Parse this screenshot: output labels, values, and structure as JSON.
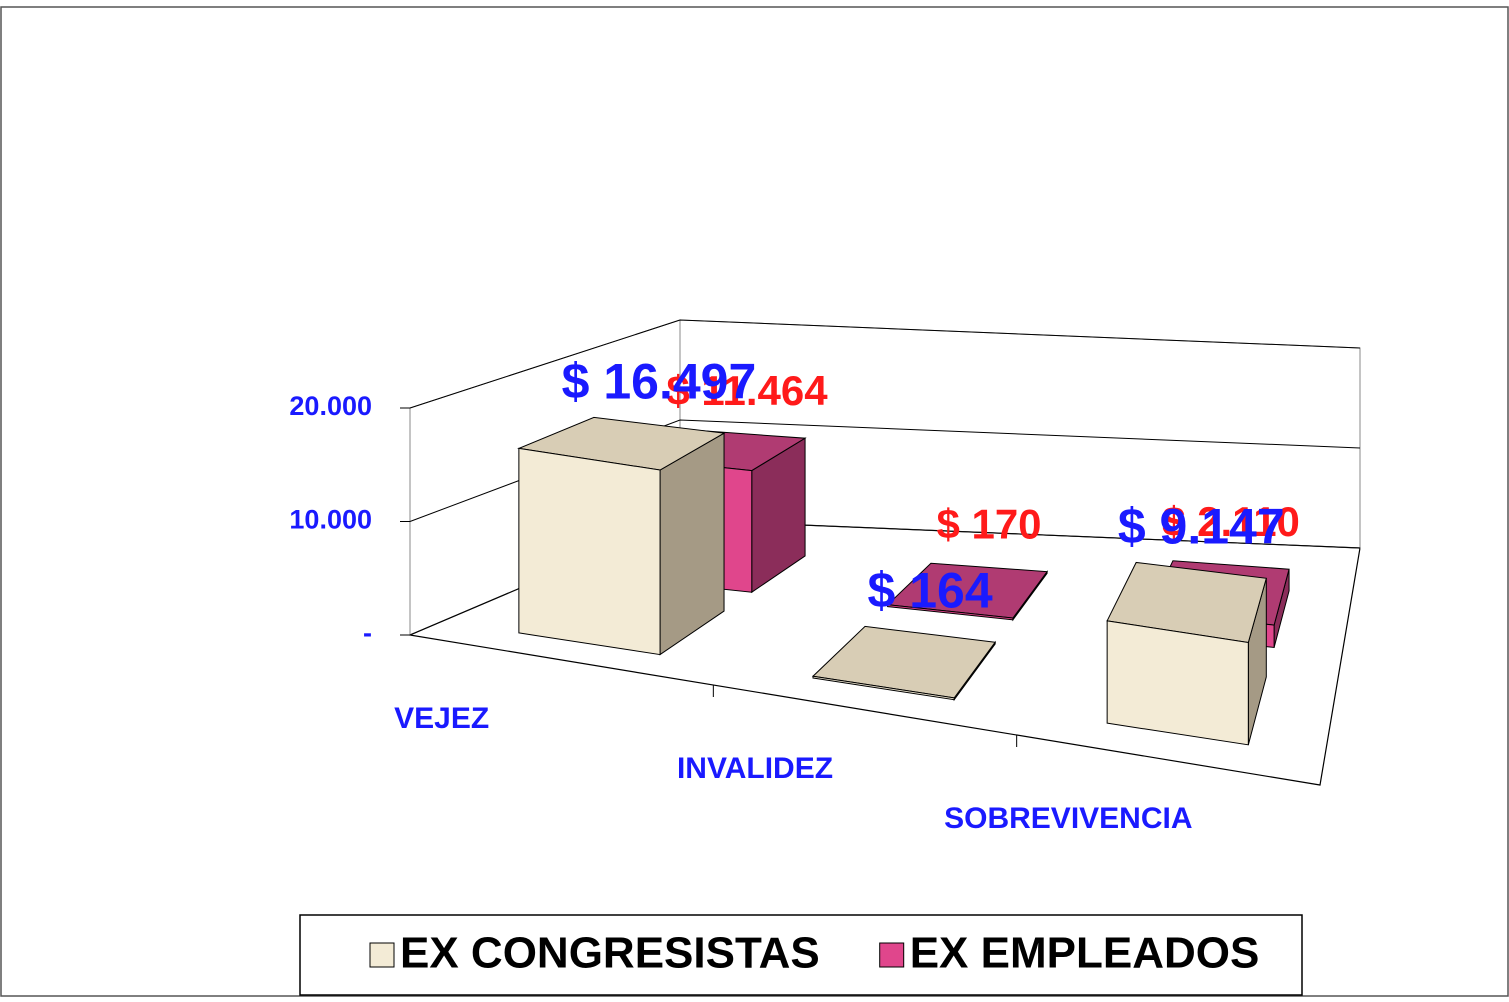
{
  "chart_data": {
    "type": "bar3d",
    "categories": [
      "VEJEZ",
      "INVALIDEZ",
      "SOBREVIVENCIA"
    ],
    "series": [
      {
        "name": "EX CONGRESISTAS",
        "color": "#f3ebd6",
        "values": [
          16497,
          164,
          9147
        ],
        "value_labels": [
          "$ 16.497",
          "$ 164",
          "$ 9.147"
        ]
      },
      {
        "name": "EX EMPLEADOS",
        "color": "#e0468c",
        "values": [
          11464,
          170,
          2110
        ],
        "value_labels": [
          "$ 11.464",
          "$ 170",
          "$ 2.110"
        ]
      }
    ],
    "ylim": [
      0,
      20000
    ],
    "yticks": [
      {
        "value": 0,
        "label": "-"
      },
      {
        "value": 10000,
        "label": "10.000"
      },
      {
        "value": 20000,
        "label": "20.000"
      }
    ],
    "grid": true
  }
}
